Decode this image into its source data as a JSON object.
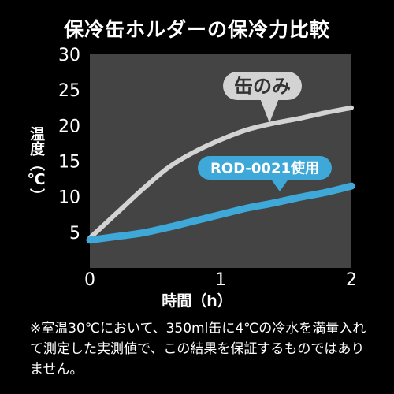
{
  "chart_data": {
    "type": "line",
    "title": "保冷缶ホルダーの保冷力比較",
    "xlabel": "時間（h）",
    "ylabel": "温度（℃）",
    "xlim": [
      0,
      2
    ],
    "ylim": [
      0,
      30
    ],
    "x_ticks": [
      "0",
      "1",
      "2"
    ],
    "y_ticks": [
      "5",
      "10",
      "15",
      "20",
      "25",
      "30"
    ],
    "grid": false,
    "series": [
      {
        "name": "缶のみ",
        "color": "#d3d3d3",
        "x": [
          0.0,
          0.2,
          0.4,
          0.6,
          0.8,
          1.0,
          1.2,
          1.4,
          1.6,
          1.8,
          2.0
        ],
        "y": [
          4.2,
          7.6,
          11.0,
          14.1,
          16.3,
          18.0,
          19.4,
          20.3,
          21.0,
          21.8,
          22.5
        ]
      },
      {
        "name": "ROD-0021使用",
        "color": "#3ea8d8",
        "x": [
          0.0,
          0.2,
          0.4,
          0.6,
          0.8,
          1.0,
          1.2,
          1.4,
          1.6,
          1.8,
          2.0
        ],
        "y": [
          3.9,
          4.4,
          4.9,
          5.7,
          6.6,
          7.5,
          8.4,
          9.1,
          9.9,
          10.6,
          11.5
        ]
      }
    ],
    "footnote": "※室温30℃において、350ml缶に4℃の冷水を満量入れて測定した実測値で、この結果を保証するものではありません。"
  },
  "colors": {
    "background": "#000000",
    "plot_area": "#444444",
    "text": "#ffffff"
  }
}
